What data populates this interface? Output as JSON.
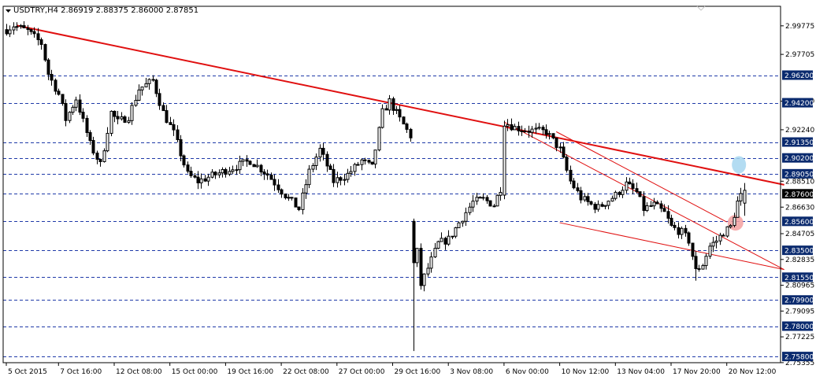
{
  "chart_data": {
    "type": "candlestick",
    "title": "USDTRY,H4  2.86919 2.88375 2.86000 2.87851",
    "symbol": "USDTRY",
    "timeframe": "H4",
    "ohlc_last": {
      "open": 2.86919,
      "high": 2.88375,
      "low": 2.86,
      "close": 2.87851
    },
    "ylim": [
      2.7535,
      3.0045
    ],
    "y_ticks": [
      "2.99775",
      "2.97705",
      "2.94310",
      "2.92240",
      "2.88510",
      "2.86630",
      "2.84705",
      "2.82835",
      "2.80965",
      "2.79095",
      "2.77225",
      "2.75355"
    ],
    "x_ticks": [
      {
        "label": "5 Oct 2015",
        "bar": 0
      },
      {
        "label": "7 Oct 16:00",
        "bar": 15
      },
      {
        "label": "12 Oct 08:00",
        "bar": 31
      },
      {
        "label": "15 Oct 00:00",
        "bar": 47
      },
      {
        "label": "19 Oct 16:00",
        "bar": 63
      },
      {
        "label": "22 Oct 08:00",
        "bar": 79
      },
      {
        "label": "27 Oct 00:00",
        "bar": 95
      },
      {
        "label": "29 Oct 16:00",
        "bar": 111
      },
      {
        "label": "3 Nov 08:00",
        "bar": 127
      },
      {
        "label": "6 Nov 00:00",
        "bar": 143
      },
      {
        "label": "10 Nov 12:00",
        "bar": 159
      },
      {
        "label": "13 Nov 04:00",
        "bar": 175
      },
      {
        "label": "17 Nov 20:00",
        "bar": 191
      },
      {
        "label": "20 Nov 12:00",
        "bar": 207
      }
    ],
    "bar_count": 223,
    "current_price": 2.876,
    "price_levels": [
      {
        "label": "2.96200",
        "value": 2.962
      },
      {
        "label": "2.94200",
        "value": 2.942
      },
      {
        "label": "2.91350",
        "value": 2.9135
      },
      {
        "label": "2.90200",
        "value": 2.902
      },
      {
        "label": "2.89050",
        "value": 2.8905
      },
      {
        "label": "2.87600",
        "value": 2.876
      },
      {
        "label": "2.85600",
        "value": 2.856
      },
      {
        "label": "2.83500",
        "value": 2.835
      },
      {
        "label": "2.81550",
        "value": 2.8155
      },
      {
        "label": "2.79900",
        "value": 2.799
      },
      {
        "label": "2.78000",
        "value": 2.78
      },
      {
        "label": "2.75800",
        "value": 2.758
      }
    ],
    "waypoints": [
      [
        0,
        2.995
      ],
      [
        2,
        2.998
      ],
      [
        6,
        2.994
      ],
      [
        10,
        2.985
      ],
      [
        12,
        2.963
      ],
      [
        15,
        2.948
      ],
      [
        17,
        2.93
      ],
      [
        20,
        2.945
      ],
      [
        24,
        2.912
      ],
      [
        27,
        2.897
      ],
      [
        30,
        2.935
      ],
      [
        32,
        2.928
      ],
      [
        35,
        2.932
      ],
      [
        38,
        2.952
      ],
      [
        42,
        2.958
      ],
      [
        45,
        2.935
      ],
      [
        48,
        2.92
      ],
      [
        52,
        2.89
      ],
      [
        55,
        2.885
      ],
      [
        60,
        2.89
      ],
      [
        65,
        2.895
      ],
      [
        70,
        2.9
      ],
      [
        75,
        2.89
      ],
      [
        80,
        2.875
      ],
      [
        84,
        2.865
      ],
      [
        87,
        2.892
      ],
      [
        90,
        2.908
      ],
      [
        94,
        2.885
      ],
      [
        98,
        2.89
      ],
      [
        102,
        2.9
      ],
      [
        105,
        2.895
      ],
      [
        108,
        2.935
      ],
      [
        110,
        2.943
      ],
      [
        113,
        2.93
      ],
      [
        116,
        2.918
      ],
      [
        117,
        2.858
      ],
      [
        119,
        2.81
      ],
      [
        121,
        2.822
      ],
      [
        124,
        2.84
      ],
      [
        127,
        2.843
      ],
      [
        130,
        2.855
      ],
      [
        134,
        2.87
      ],
      [
        137,
        2.872
      ],
      [
        140,
        2.868
      ],
      [
        142,
        2.88
      ],
      [
        143,
        2.928
      ],
      [
        146,
        2.924
      ],
      [
        150,
        2.922
      ],
      [
        155,
        2.921
      ],
      [
        159,
        2.908
      ],
      [
        162,
        2.885
      ],
      [
        165,
        2.873
      ],
      [
        168,
        2.868
      ],
      [
        170,
        2.866
      ],
      [
        175,
        2.875
      ],
      [
        178,
        2.883
      ],
      [
        181,
        2.877
      ],
      [
        183,
        2.865
      ],
      [
        186,
        2.868
      ],
      [
        189,
        2.862
      ],
      [
        191,
        2.852
      ],
      [
        194,
        2.848
      ],
      [
        196,
        2.842
      ],
      [
        198,
        2.82
      ],
      [
        200,
        2.825
      ],
      [
        202,
        2.838
      ],
      [
        204,
        2.842
      ],
      [
        206,
        2.848
      ],
      [
        208,
        2.852
      ],
      [
        210,
        2.87
      ],
      [
        212,
        2.8785
      ]
    ],
    "candle_color": "#000000",
    "level_line_color": "#1f3aa8",
    "badge_color": "#0a2a6e",
    "trendline_color": "#e01010",
    "highlight_colors": [
      "#f4a0a0",
      "#a6d6f0"
    ]
  }
}
